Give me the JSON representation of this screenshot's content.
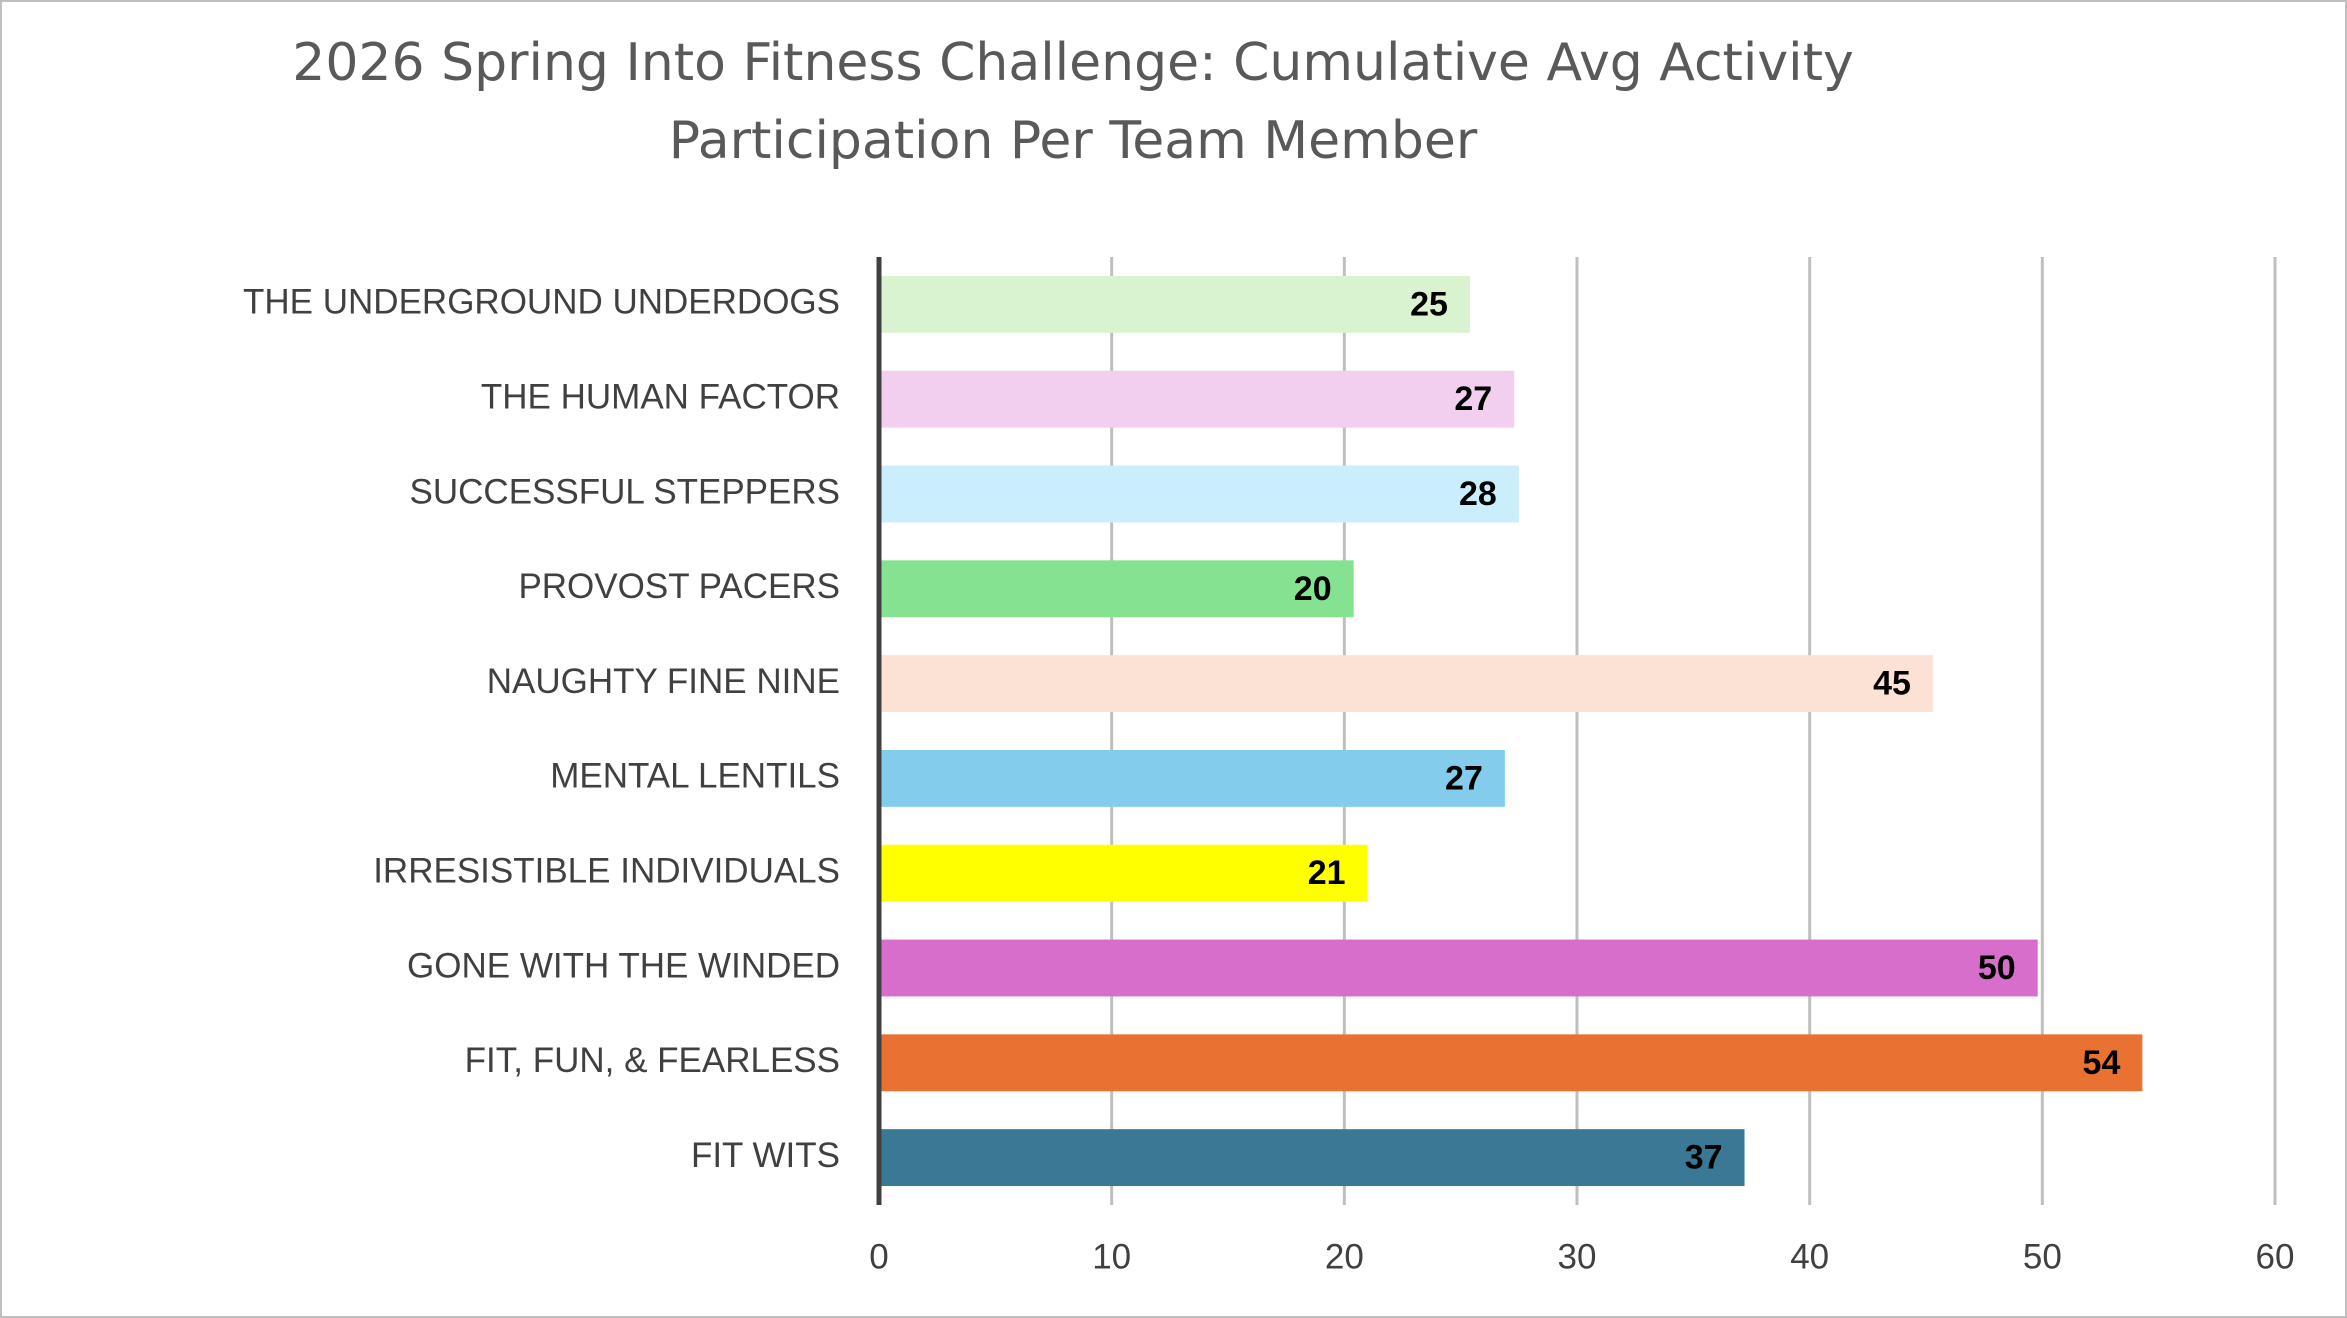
{
  "chart_data": {
    "type": "hbar",
    "title": "2026 Spring Into Fitness Challenge: Cumulative Avg Activity Participation Per Team Member",
    "categories": [
      "THE UNDERGROUND UNDERDOGS",
      "THE HUMAN FACTOR",
      "SUCCESSFUL STEPPERS",
      "PROVOST PACERS",
      "NAUGHTY FINE NINE",
      "MENTAL LENTILS",
      "IRRESISTIBLE INDIVIDUALS",
      "GONE WITH THE WINDED",
      "FIT, FUN, & FEARLESS",
      "FIT WITS"
    ],
    "values": [
      25.4,
      27.3,
      27.5,
      20.4,
      45.3,
      26.9,
      21.0,
      49.8,
      54.3,
      37.2
    ],
    "value_labels": [
      "25",
      "27",
      "28",
      "20",
      "45",
      "27",
      "21",
      "50",
      "54",
      "37"
    ],
    "colors": [
      "#d9f2d0",
      "#f2cfee",
      "#caeefb",
      "#84e291",
      "#fbe2d5",
      "#83cceb",
      "#ffff00",
      "#d86ecc",
      "#e97132",
      "#3a7896"
    ],
    "xlim": [
      0,
      60
    ],
    "xticks": [
      0,
      10,
      20,
      30,
      40,
      50,
      60
    ],
    "grid": true
  }
}
